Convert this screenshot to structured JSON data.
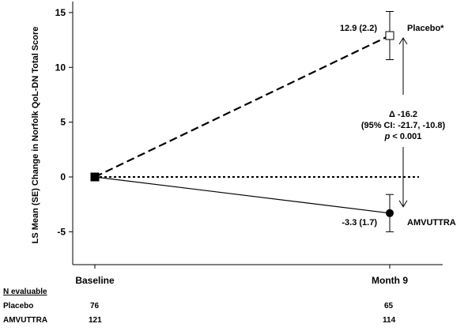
{
  "chart_data": {
    "type": "line",
    "ylabel": "LS Mean (SE) Change in Norfolk QoL-DN Total Score",
    "xlabel": "",
    "categories": [
      "Baseline",
      "Month 9"
    ],
    "ylim": [
      -8,
      16
    ],
    "yticks": [
      -5,
      0,
      5,
      10,
      15
    ],
    "grid": false,
    "series": [
      {
        "name": "Placebo*",
        "values": [
          0,
          12.9
        ],
        "se": [
          0,
          2.2
        ],
        "line_style": "dashed",
        "marker": "open-square",
        "label": "12.9 (2.2)"
      },
      {
        "name": "AMVUTTRA",
        "values": [
          0,
          -3.3
        ],
        "se": [
          0,
          1.7
        ],
        "line_style": "solid",
        "marker": "filled-circle",
        "label": "-3.3 (1.7)"
      }
    ],
    "reference_line": {
      "y": 0,
      "style": "dotted"
    },
    "annotation": {
      "line1": "Δ -16.2",
      "line2": "(95% CI: -21.7, -10.8)",
      "line3_p": "p",
      "line3_rest": " < 0.001"
    }
  },
  "n_table": {
    "header": "N evaluable",
    "rows": [
      {
        "label": "Placebo",
        "baseline": "76",
        "month9": "65"
      },
      {
        "label": "AMVUTTRA",
        "baseline": "121",
        "month9": "114"
      }
    ]
  }
}
